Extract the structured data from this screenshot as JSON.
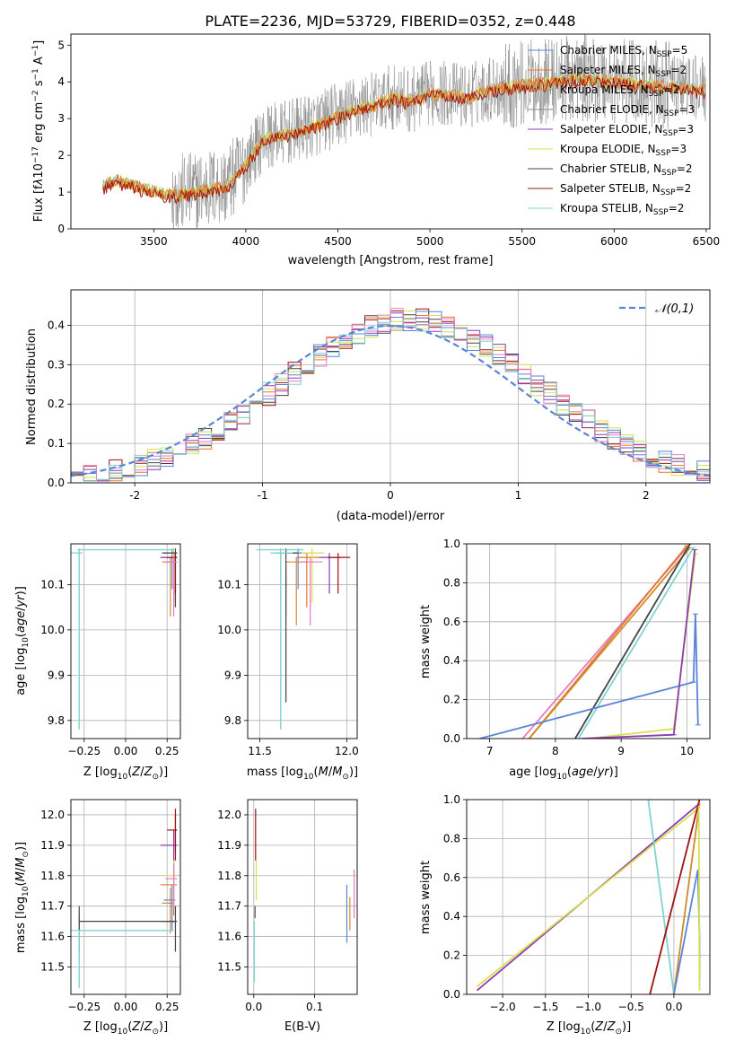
{
  "figure_title": "PLATE=2236, MJD=53729, FIBERID=0352, z=0.448",
  "colors": {
    "Chabrier MILES": "#5b84d6",
    "Salpeter MILES": "#e8762c",
    "Kroupa MILES": "#d08a2c",
    "Chabrier ELODIE": "#888888",
    "Salpeter ELODIE": "#8c3cb4",
    "Kroupa ELODIE": "#d8e04a",
    "Chabrier STELIB": "#444444",
    "Salpeter STELIB": "#a01010",
    "Kroupa STELIB": "#7fd4d0",
    "Pink": "#e57cc0",
    "Normal": "#5b84d6"
  },
  "chart_data": [
    {
      "id": "spectrum",
      "type": "line",
      "title": "PLATE=2236, MJD=53729, FIBERID=0352, z=0.448",
      "xlabel": "wavelength [Angstrom, rest frame]",
      "ylabel": "Flux [fλ10⁻¹⁷ erg cm⁻² s⁻¹ A⁻¹]",
      "xlim": [
        3050,
        6520
      ],
      "ylim": [
        0,
        5.3
      ],
      "xticks": [
        3500,
        4000,
        4500,
        5000,
        5500,
        6000,
        6500
      ],
      "yticks": [
        0,
        1,
        2,
        3,
        4,
        5
      ],
      "legend_position": "right",
      "legend": [
        "Chabrier MILES, N_SSP=5",
        "Salpeter MILES, N_SSP=2",
        "Kroupa MILES, N_SSP=2",
        "Chabrier ELODIE, N_SSP=3",
        "Salpeter ELODIE, N_SSP=3",
        "Kroupa ELODIE, N_SSP=3",
        "Chabrier STELIB, N_SSP=2",
        "Salpeter STELIB, N_SSP=2",
        "Kroupa STELIB, N_SSP=2"
      ],
      "continuum": {
        "wavelength": [
          3220,
          3300,
          3400,
          3500,
          3600,
          3700,
          3800,
          3900,
          4000,
          4100,
          4200,
          4300,
          4400,
          4500,
          4600,
          4700,
          4800,
          4900,
          5000,
          5100,
          5200,
          5300,
          5400,
          5500,
          5600,
          5700,
          5800,
          5900,
          6000,
          6100,
          6200,
          6300,
          6400,
          6500
        ],
        "flux": [
          1.2,
          1.35,
          1.2,
          1.05,
          0.95,
          1.0,
          1.1,
          1.2,
          1.8,
          2.5,
          2.6,
          2.7,
          2.9,
          3.1,
          3.3,
          3.4,
          3.6,
          3.5,
          3.7,
          3.7,
          3.6,
          3.8,
          3.9,
          3.95,
          4.0,
          4.05,
          4.1,
          4.1,
          4.05,
          4.0,
          3.95,
          3.9,
          3.85,
          3.8
        ]
      }
    },
    {
      "id": "residuals",
      "type": "line",
      "xlabel": "(data-model)/error",
      "ylabel": "Normed distribution",
      "xlim": [
        -2.5,
        2.5
      ],
      "ylim": [
        0,
        0.49
      ],
      "xticks": [
        -2,
        -1,
        0,
        1,
        2
      ],
      "yticks": [
        0.0,
        0.1,
        0.2,
        0.3,
        0.4
      ],
      "grid": true,
      "legend": "𝒩(0,1)",
      "legend_position": "top-right"
    },
    {
      "id": "age-vs-Z",
      "type": "scatter",
      "xlabel": "Z [log10(Z/Z⊙)]",
      "ylabel": "age  [log10(age/yr)]",
      "xlim": [
        -0.33,
        0.33
      ],
      "ylim": [
        9.76,
        10.19
      ],
      "xticks": [
        -0.25,
        0.0,
        0.25
      ],
      "xticklabels": [
        "−0.25",
        "0.00",
        "0.25"
      ],
      "yticks": [
        9.8,
        9.9,
        10.0,
        10.1
      ],
      "yticklabels": [
        "9.8",
        "9.9",
        "10.0",
        "10.1"
      ],
      "grid": true
    },
    {
      "id": "age-vs-mass",
      "type": "scatter",
      "xlabel": "mass [log10(M/M⊙)]",
      "xlim": [
        11.43,
        12.06
      ],
      "ylim": [
        9.76,
        10.19
      ],
      "xticks": [
        11.5,
        12.0
      ],
      "xticklabels": [
        "11.5",
        "12.0"
      ],
      "yticks": [
        9.8,
        9.9,
        10.0,
        10.1
      ],
      "yticklabels": [
        "9.8",
        "9.9",
        "10.0",
        "10.1"
      ],
      "grid": true
    },
    {
      "id": "weight-vs-age",
      "type": "line",
      "xlabel": "age  [log10(age/yr)]",
      "ylabel": "mass weight",
      "xlim": [
        6.65,
        10.35
      ],
      "ylim": [
        0,
        1
      ],
      "xticks": [
        7,
        8,
        9,
        10
      ],
      "xticklabels": [
        "7",
        "8",
        "9",
        "10"
      ],
      "yticks": [
        0,
        0.2,
        0.4,
        0.6,
        0.8,
        1.0
      ],
      "yticklabels": [
        "0.0",
        "0.2",
        "0.4",
        "0.6",
        "0.8",
        "1.0"
      ],
      "grid": true
    },
    {
      "id": "mass-vs-Z",
      "type": "scatter",
      "xlabel": "Z [log10(Z/Z⊙)]",
      "ylabel": "mass [log10(M/M⊙)]",
      "xlim": [
        -0.33,
        0.33
      ],
      "ylim": [
        11.41,
        12.05
      ],
      "xticks": [
        -0.25,
        0.0,
        0.25
      ],
      "xticklabels": [
        "−0.25",
        "0.00",
        "0.25"
      ],
      "yticks": [
        11.5,
        11.6,
        11.7,
        11.8,
        11.9,
        12.0
      ],
      "yticklabels": [
        "11.5",
        "11.6",
        "11.7",
        "11.8",
        "11.9",
        "12.0"
      ],
      "grid": true
    },
    {
      "id": "mass-vs-EBV",
      "type": "scatter",
      "xlabel": "E(B-V)",
      "xlim": [
        -0.01,
        0.17
      ],
      "ylim": [
        11.41,
        12.05
      ],
      "xticks": [
        0.0,
        0.1
      ],
      "xticklabels": [
        "0.0",
        "0.1"
      ],
      "yticks": [
        11.5,
        11.6,
        11.7,
        11.8,
        11.9,
        12.0
      ],
      "yticklabels": [
        "11.5",
        "11.6",
        "11.7",
        "11.8",
        "11.9",
        "12.0"
      ],
      "grid": true
    },
    {
      "id": "weight-vs-Z",
      "type": "line",
      "xlabel": "Z [log10(Z/Z⊙)]",
      "ylabel": "mass weight",
      "xlim": [
        -2.42,
        0.42
      ],
      "ylim": [
        0,
        1
      ],
      "xticks": [
        -2.0,
        -1.5,
        -1.0,
        -0.5,
        0.0
      ],
      "xticklabels": [
        "−2.0",
        "−1.5",
        "−1.0",
        "−0.5",
        "0.0"
      ],
      "yticks": [
        0,
        0.2,
        0.4,
        0.6,
        0.8,
        1.0
      ],
      "yticklabels": [
        "0.0",
        "0.2",
        "0.4",
        "0.6",
        "0.8",
        "1.0"
      ],
      "grid": true
    }
  ]
}
